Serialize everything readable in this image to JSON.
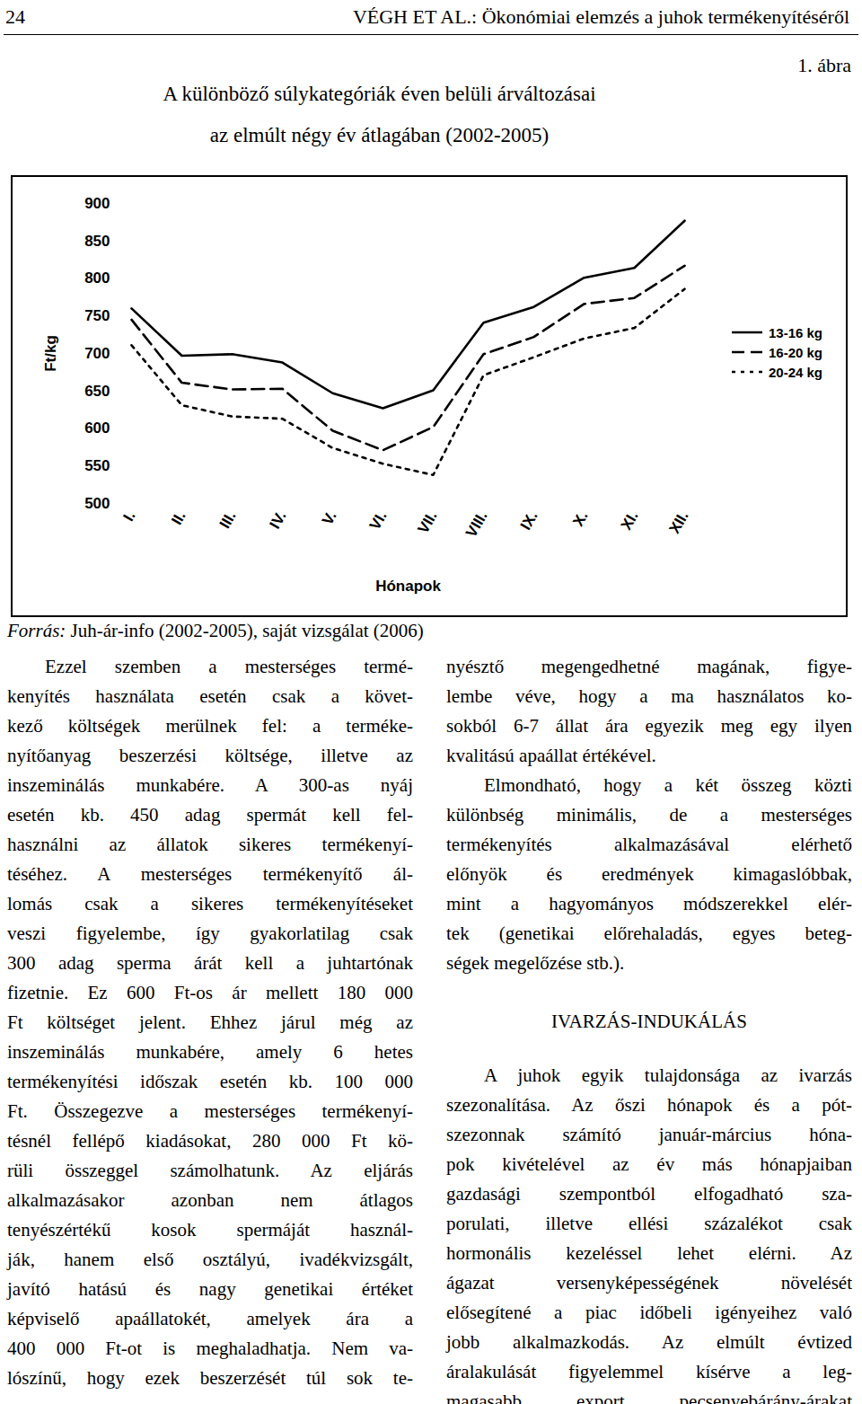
{
  "header": {
    "page": "24",
    "running_title": "VÉGH ET AL.: Ökonómiai elemzés a juhok termékenyítéséről"
  },
  "figure": {
    "label": "1. ábra",
    "source_label": "Forrás:",
    "source": "Juh-ár-info (2002-2005), saját vizsgálat (2006)"
  },
  "chart_data": {
    "type": "line",
    "title": "A különböző súlykategóriák éven belüli árváltozásai\naz elmúlt négy év átlagában (2002-2005)",
    "x_label": "Hónapok",
    "y_label": "Ft/kg",
    "categories": [
      "I.",
      "II.",
      "III.",
      "IV.",
      "V.",
      "VI.",
      "VII.",
      "VIII.",
      "IX.",
      "X.",
      "XI.",
      "XII."
    ],
    "series": [
      {
        "name": "13-16 kg",
        "color": "#000000",
        "line_style": "solid",
        "values": [
          760,
          697,
          699,
          688,
          647,
          627,
          651,
          741,
          762,
          801,
          814,
          877
        ]
      },
      {
        "name": "16-20 kg",
        "color": "#000000",
        "line_style": "dashed",
        "values": [
          745,
          661,
          652,
          653,
          597,
          571,
          602,
          699,
          722,
          766,
          774,
          817
        ]
      },
      {
        "name": "20-24 kg",
        "color": "#000000",
        "line_style": "dotted",
        "values": [
          711,
          631,
          616,
          613,
          574,
          553,
          538,
          671,
          695,
          720,
          734,
          786
        ]
      }
    ],
    "ylim": [
      500,
      900
    ],
    "yticks": [
      500,
      550,
      600,
      650,
      700,
      750,
      800,
      850,
      900
    ],
    "grid": false,
    "legend": "right"
  },
  "columns": [
    [
      {
        "type": "p",
        "lines": [
          "Ezzel szemben a mesterséges termé-",
          "kenyítés használata esetén csak a követ-",
          "kező költségek merülnek fel: a terméke-",
          "nyítőanyag beszerzési költsége, illetve az",
          "inszeminálás munkabére. A 300-as nyáj",
          "esetén kb. 450 adag spermát kell fel-",
          "használni az állatok sikeres termékenyí-",
          "téséhez. A mesterséges termékenyítő ál-",
          "lomás csak a sikeres termékenyítéseket",
          "veszi figyelembe, így gyakorlatilag csak",
          "300 adag sperma árát kell a juhtartónak",
          "fizetnie. Ez 600 Ft-os ár mellett 180 000",
          "Ft költséget jelent. Ehhez járul még az",
          "inszeminálás munkabére, amely 6 hetes",
          "termékenyítési időszak esetén kb. 100 000",
          "Ft. Összegezve a mesterséges termékenyí-",
          "tésnél fellépő kiadásokat, 280 000 Ft kö-",
          "rüli összeggel számolhatunk. Az eljárás",
          "alkalmazásakor azonban nem átlagos",
          "tenyészértékű kosok spermáját használ-",
          "ják, hanem első osztályú, ivadékvizsgált,",
          "javító hatású és nagy genetikai értéket",
          "képviselő apaállatokét, amelyek ára a",
          "400 000 Ft-ot is meghaladhatja. Nem va-",
          "lószínű, hogy ezek beszerzését túl sok te-"
        ]
      }
    ],
    [
      {
        "type": "p",
        "lines": [
          "nyésztő megengedhetné magának, figye-",
          "lembe véve, hogy a ma használatos ko-",
          "sokból 6-7 állat ára egyezik meg egy ilyen",
          "kvalitású apaállat értékével."
        ]
      },
      {
        "type": "p",
        "lines": [
          "Elmondható, hogy a két összeg közti",
          "különbség minimális, de a mesterséges",
          "termékenyítés alkalmazásával elérhető",
          "előnyök és eredmények kimagaslóbbak,",
          "mint a hagyományos módszerekkel elér-",
          "tek (genetikai előrehaladás, egyes beteg-",
          "ségek megelőzése stb.)."
        ]
      },
      {
        "type": "heading",
        "text": "IVARZÁS-INDUKÁLÁS"
      },
      {
        "type": "p",
        "lines": [
          "A juhok egyik tulajdonsága az ivarzás",
          "szezonalítása. Az őszi hónapok és a pót-",
          "szezonnak számító január-március hóna-",
          "pok kivételével az év más hónapjaiban",
          "gazdasági szempontból elfogadható sza-",
          "porulati, illetve ellési százalékot csak",
          "hormonális kezeléssel lehet elérni. Az",
          "ágazat versenyképességének növelését",
          "elősegítené a piac időbeli igényeihez való",
          "jobb alkalmazkodás. Az elmúlt évtized",
          "áralakulását figyelemmel kísérve a leg-",
          "magasabb export pecsenyebárány-árakat"
        ]
      }
    ]
  ]
}
